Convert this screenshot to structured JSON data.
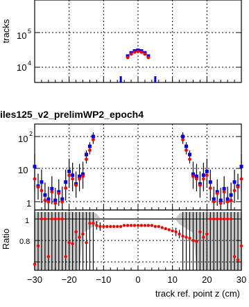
{
  "top_panel": {
    "ylabel": "tracks",
    "tick_labels": {
      "1e5": "10",
      "1e5_exp": "5",
      "1e4": "10",
      "1e4_exp": "4"
    }
  },
  "header": {
    "title": "iles125_v2_prelimWP2_epoch4"
  },
  "main_panel": {
    "tick_labels": {
      "100": "10",
      "100_exp": "2",
      "10": "10",
      "1": "1"
    }
  },
  "ratio_panel": {
    "ylabel": "Ratio",
    "tick_labels": {
      "1": "1",
      "0.8": "0.8",
      "0.6": "0.6"
    }
  },
  "x_axis": {
    "label": "track ref. point z (cm)",
    "tick_labels": [
      "−30",
      "−20",
      "−10",
      "0",
      "10",
      "20",
      "30"
    ]
  },
  "colors": {
    "series_a": "#0000ff",
    "series_b": "#ff0000",
    "band": "#c8c8c8"
  },
  "chart_data": [
    {
      "type": "scatter",
      "name": "top",
      "xlim": [
        -30,
        30
      ],
      "ylim_log": [
        6000,
        300000
      ],
      "x": [
        -3,
        -2,
        -1,
        0,
        1,
        2,
        3
      ],
      "series": [
        {
          "values": [
            21000,
            26000,
            29500,
            31000,
            29500,
            26000,
            21000
          ]
        },
        {
          "values": [
            20000,
            25000,
            28500,
            30000,
            28500,
            25000,
            20000
          ]
        }
      ]
    },
    {
      "type": "scatter",
      "name": "main",
      "xlim": [
        -30,
        30
      ],
      "ylim_log": [
        0.6,
        200
      ],
      "series": [
        {
          "x": [
            -30,
            -29,
            -28,
            -27,
            -26,
            -25,
            -24,
            -23,
            -22,
            -21,
            -20,
            -19,
            -18,
            -17,
            -16,
            -15,
            -14,
            -13,
            13,
            14,
            15,
            16,
            17,
            18,
            19,
            20,
            21,
            22,
            23,
            24,
            25,
            26,
            27,
            28,
            29,
            30
          ],
          "values": [
            12,
            3,
            4,
            1.6,
            1.2,
            2.5,
            1.1,
            2.0,
            1.2,
            4.0,
            8.5,
            6.5,
            3.5,
            6.0,
            7.0,
            28,
            50,
            100,
            100,
            50,
            28,
            7.0,
            6.0,
            3.5,
            6.5,
            8.5,
            4.0,
            1.2,
            2.0,
            1.1,
            2.5,
            1.2,
            1.6,
            4,
            3,
            12
          ]
        },
        {
          "x": [
            -30,
            -29,
            -28,
            -27,
            -26,
            -25,
            -24,
            -23,
            -22,
            -21,
            -20,
            -19,
            -18,
            -17,
            -16,
            -15,
            -14,
            -13,
            13,
            14,
            15,
            16,
            17,
            18,
            19,
            20,
            21,
            22,
            23,
            24,
            25,
            26,
            27,
            28,
            29,
            30
          ],
          "values": [
            5,
            2.8,
            2.2,
            1.1,
            1.0,
            2.0,
            0.9,
            1.8,
            1.0,
            2.6,
            6.5,
            5.0,
            3.2,
            5.0,
            6.0,
            20,
            38,
            80,
            80,
            38,
            20,
            6.0,
            5.0,
            3.2,
            5.0,
            6.5,
            2.6,
            1.0,
            1.8,
            0.9,
            2.0,
            1.0,
            1.1,
            2.2,
            2.8,
            5
          ]
        }
      ]
    },
    {
      "type": "scatter",
      "name": "ratio",
      "ylabel": "Ratio",
      "xlim": [
        -30,
        30
      ],
      "ylim": [
        0.55,
        1.08
      ],
      "x": [
        -30,
        -29,
        -28,
        -27,
        -26,
        -25,
        -24,
        -23,
        -22,
        -21,
        -20,
        -19,
        -18,
        -17,
        -16,
        -15,
        -14,
        -13,
        -12,
        -11,
        -10,
        -9,
        -8,
        -7,
        -6,
        -5,
        -4,
        -3,
        -2,
        -1,
        0,
        1,
        2,
        3,
        4,
        5,
        6,
        7,
        8,
        9,
        10,
        11,
        12,
        13,
        14,
        15,
        16,
        17,
        18,
        19,
        20,
        21,
        22,
        23,
        24,
        25,
        26,
        27,
        28,
        29,
        30
      ],
      "values": [
        0.58,
        0.75,
        1.0,
        1.0,
        0.65,
        1.0,
        1.0,
        1.0,
        1.0,
        0.65,
        0.78,
        0.77,
        0.88,
        0.83,
        0.86,
        0.78,
        0.96,
        0.96,
        0.94,
        0.93,
        0.93,
        0.93,
        0.93,
        0.93,
        0.93,
        0.93,
        0.94,
        0.94,
        0.94,
        0.94,
        0.94,
        0.94,
        0.94,
        0.94,
        0.94,
        0.93,
        0.93,
        0.92,
        0.91,
        0.9,
        0.89,
        0.88,
        0.86,
        0.84,
        0.83,
        0.82,
        0.8,
        0.79,
        0.88,
        0.83,
        0.86,
        1.0,
        1.0,
        1.0,
        1.0,
        1.0,
        1.0,
        1.0,
        0.65,
        0.62,
        0.75
      ]
    }
  ]
}
